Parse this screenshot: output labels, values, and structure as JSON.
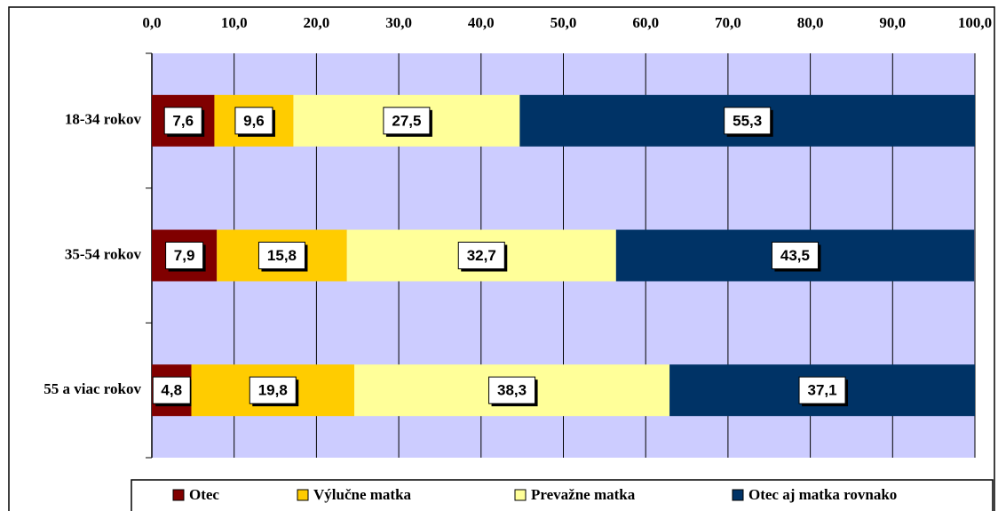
{
  "chart_data": {
    "type": "stacked-bar-horizontal",
    "categories": [
      "18-34 rokov",
      "35-54 rokov",
      "55 a viac rokov"
    ],
    "series": [
      {
        "name": "Otec",
        "color": "#800000",
        "values": [
          7.6,
          7.9,
          4.8
        ],
        "value_labels": [
          "7,6",
          "7,9",
          "4,8"
        ]
      },
      {
        "name": "Výlučne matka",
        "color": "#ffcc00",
        "values": [
          9.6,
          15.8,
          19.8
        ],
        "value_labels": [
          "9,6",
          "15,8",
          "19,8"
        ]
      },
      {
        "name": "Prevažne matka",
        "color": "#ffff99",
        "values": [
          27.5,
          32.7,
          38.3
        ],
        "value_labels": [
          "27,5",
          "32,7",
          "38,3"
        ]
      },
      {
        "name": "Otec aj matka rovnako",
        "color": "#003366",
        "values": [
          55.3,
          43.5,
          37.1
        ],
        "value_labels": [
          "55,3",
          "43,5",
          "37,1"
        ]
      }
    ],
    "xlim": [
      0,
      100
    ],
    "xticks": [
      {
        "value": 0,
        "label": "0,0"
      },
      {
        "value": 10,
        "label": "10,0"
      },
      {
        "value": 20,
        "label": "20,0"
      },
      {
        "value": 30,
        "label": "30,0"
      },
      {
        "value": 40,
        "label": "40,0"
      },
      {
        "value": 50,
        "label": "50,0"
      },
      {
        "value": 60,
        "label": "60,0"
      },
      {
        "value": 70,
        "label": "70,0"
      },
      {
        "value": 80,
        "label": "80,0"
      },
      {
        "value": 90,
        "label": "90,0"
      },
      {
        "value": 100,
        "label": "100,0"
      }
    ],
    "grid": true,
    "legend": "bottom"
  }
}
